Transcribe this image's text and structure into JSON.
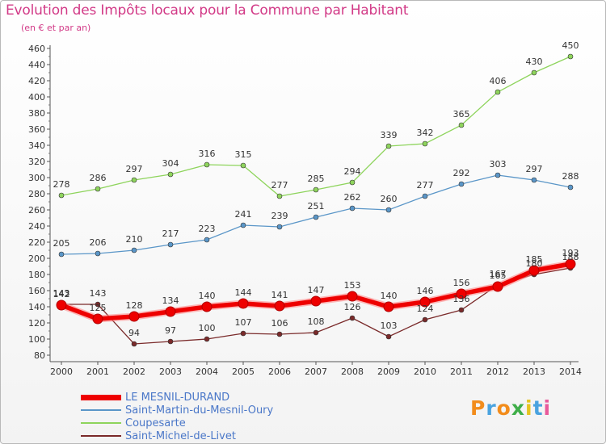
{
  "title": "Evolution des Impôts locaux pour la Commune par Habitant",
  "subtitle": "(en € et par an)",
  "logo_text": "Proxiti",
  "chart_data": {
    "type": "line",
    "x": [
      "2000",
      "2001",
      "2002",
      "2003",
      "2004",
      "2005",
      "2006",
      "2007",
      "2008",
      "2009",
      "2010",
      "2011",
      "2012",
      "2013",
      "2014"
    ],
    "ylim": [
      80,
      460
    ],
    "yticks": [
      80,
      100,
      120,
      140,
      160,
      180,
      200,
      220,
      240,
      260,
      280,
      300,
      320,
      340,
      360,
      380,
      400,
      420,
      440,
      460
    ],
    "grid": false,
    "legend_position": "bottom-left",
    "series": [
      {
        "name": "LE MESNIL-DURAND",
        "color": "#ee0000",
        "emphasis": true,
        "values": [
          142,
          125,
          128,
          134,
          140,
          144,
          141,
          147,
          153,
          140,
          146,
          156,
          165,
          185,
          193
        ]
      },
      {
        "name": "Saint-Martin-du-Mesnil-Oury",
        "color": "#5a96c8",
        "values": [
          205,
          206,
          210,
          217,
          223,
          241,
          239,
          251,
          262,
          260,
          277,
          292,
          303,
          297,
          288
        ]
      },
      {
        "name": "Coupesarte",
        "color": "#8ed45c",
        "values": [
          278,
          286,
          297,
          304,
          316,
          315,
          277,
          285,
          294,
          339,
          342,
          365,
          406,
          430,
          450
        ]
      },
      {
        "name": "Saint-Michel-de-Livet",
        "color": "#7a2a2a",
        "values": [
          143,
          143,
          94,
          97,
          100,
          107,
          106,
          108,
          126,
          103,
          124,
          136,
          167,
          180,
          188
        ]
      }
    ]
  }
}
